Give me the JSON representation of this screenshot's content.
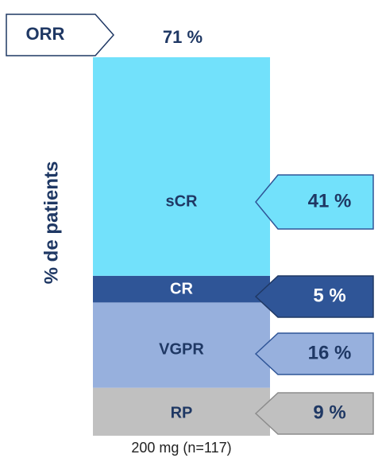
{
  "chart_data": {
    "type": "bar",
    "stacked": true,
    "y_axis_label": "% de patients",
    "categories": [
      "200 mg (n=117)"
    ],
    "series": [
      {
        "name": "RP",
        "color": "#c0c0c0",
        "values": [
          9
        ],
        "value_labels": [
          "9 %"
        ]
      },
      {
        "name": "VGPR",
        "color": "#97b0dd",
        "values": [
          16
        ],
        "value_labels": [
          "16 %"
        ]
      },
      {
        "name": "CR",
        "color": "#2f5597",
        "values": [
          5
        ],
        "value_labels": [
          "5 %"
        ]
      },
      {
        "name": "sCR",
        "color": "#72e1fb",
        "values": [
          41
        ],
        "value_labels": [
          "41 %"
        ]
      }
    ],
    "annotation": {
      "label": "ORR",
      "value": 71,
      "value_label": "71 %"
    }
  }
}
